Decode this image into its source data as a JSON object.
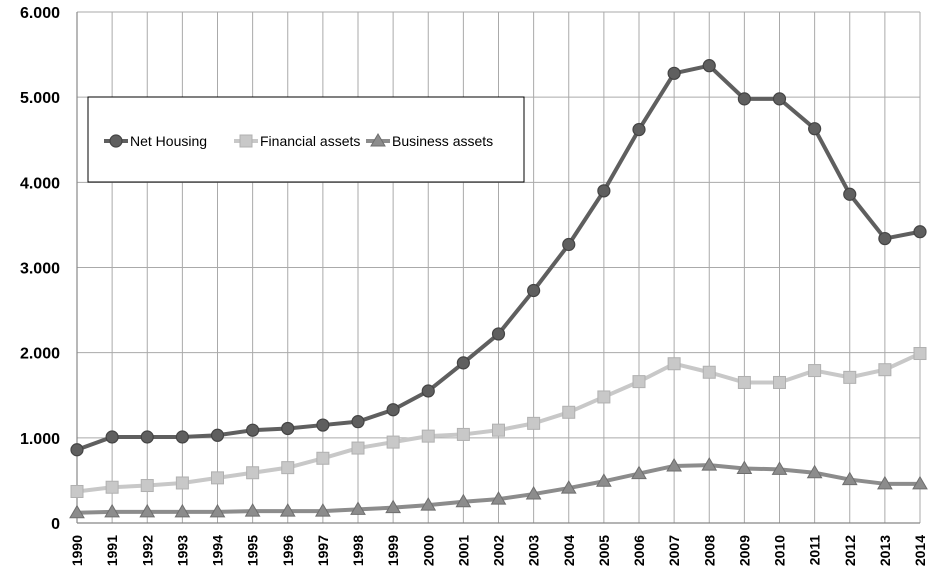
{
  "chart_data": {
    "type": "line",
    "title": "",
    "xlabel": "",
    "ylabel": "",
    "categories": [
      "1990",
      "1991",
      "1992",
      "1993",
      "1994",
      "1995",
      "1996",
      "1997",
      "1998",
      "1999",
      "2000",
      "2001",
      "2002",
      "2003",
      "2004",
      "2005",
      "2006",
      "2007",
      "2008",
      "2009",
      "2010",
      "2011",
      "2012",
      "2013",
      "2014"
    ],
    "ylim": [
      0,
      6000
    ],
    "yticks": [
      0,
      1000,
      2000,
      3000,
      4000,
      5000,
      6000
    ],
    "ytick_labels": [
      "0",
      "1.000",
      "2.000",
      "3.000",
      "4.000",
      "5.000",
      "6.000"
    ],
    "grid": true,
    "legend_position": "upper-left",
    "series": [
      {
        "name": "Net Housing",
        "marker": "circle",
        "color": "#5f5f5f",
        "values": [
          860,
          1010,
          1010,
          1010,
          1030,
          1090,
          1110,
          1150,
          1190,
          1330,
          1550,
          1880,
          2220,
          2730,
          3270,
          3900,
          4620,
          5280,
          5370,
          4980,
          4980,
          4630,
          3860,
          3340,
          3420
        ]
      },
      {
        "name": "Financial assets",
        "marker": "square",
        "color": "#c8c8c8",
        "values": [
          370,
          420,
          440,
          470,
          530,
          590,
          650,
          760,
          880,
          950,
          1020,
          1040,
          1090,
          1170,
          1300,
          1480,
          1660,
          1870,
          1770,
          1650,
          1650,
          1790,
          1710,
          1800,
          1990
        ]
      },
      {
        "name": "Business assets",
        "marker": "triangle",
        "color": "#8c8c8c",
        "values": [
          120,
          130,
          130,
          130,
          130,
          140,
          140,
          140,
          160,
          180,
          210,
          250,
          280,
          340,
          410,
          490,
          580,
          670,
          680,
          640,
          630,
          590,
          510,
          460,
          460
        ]
      }
    ]
  }
}
